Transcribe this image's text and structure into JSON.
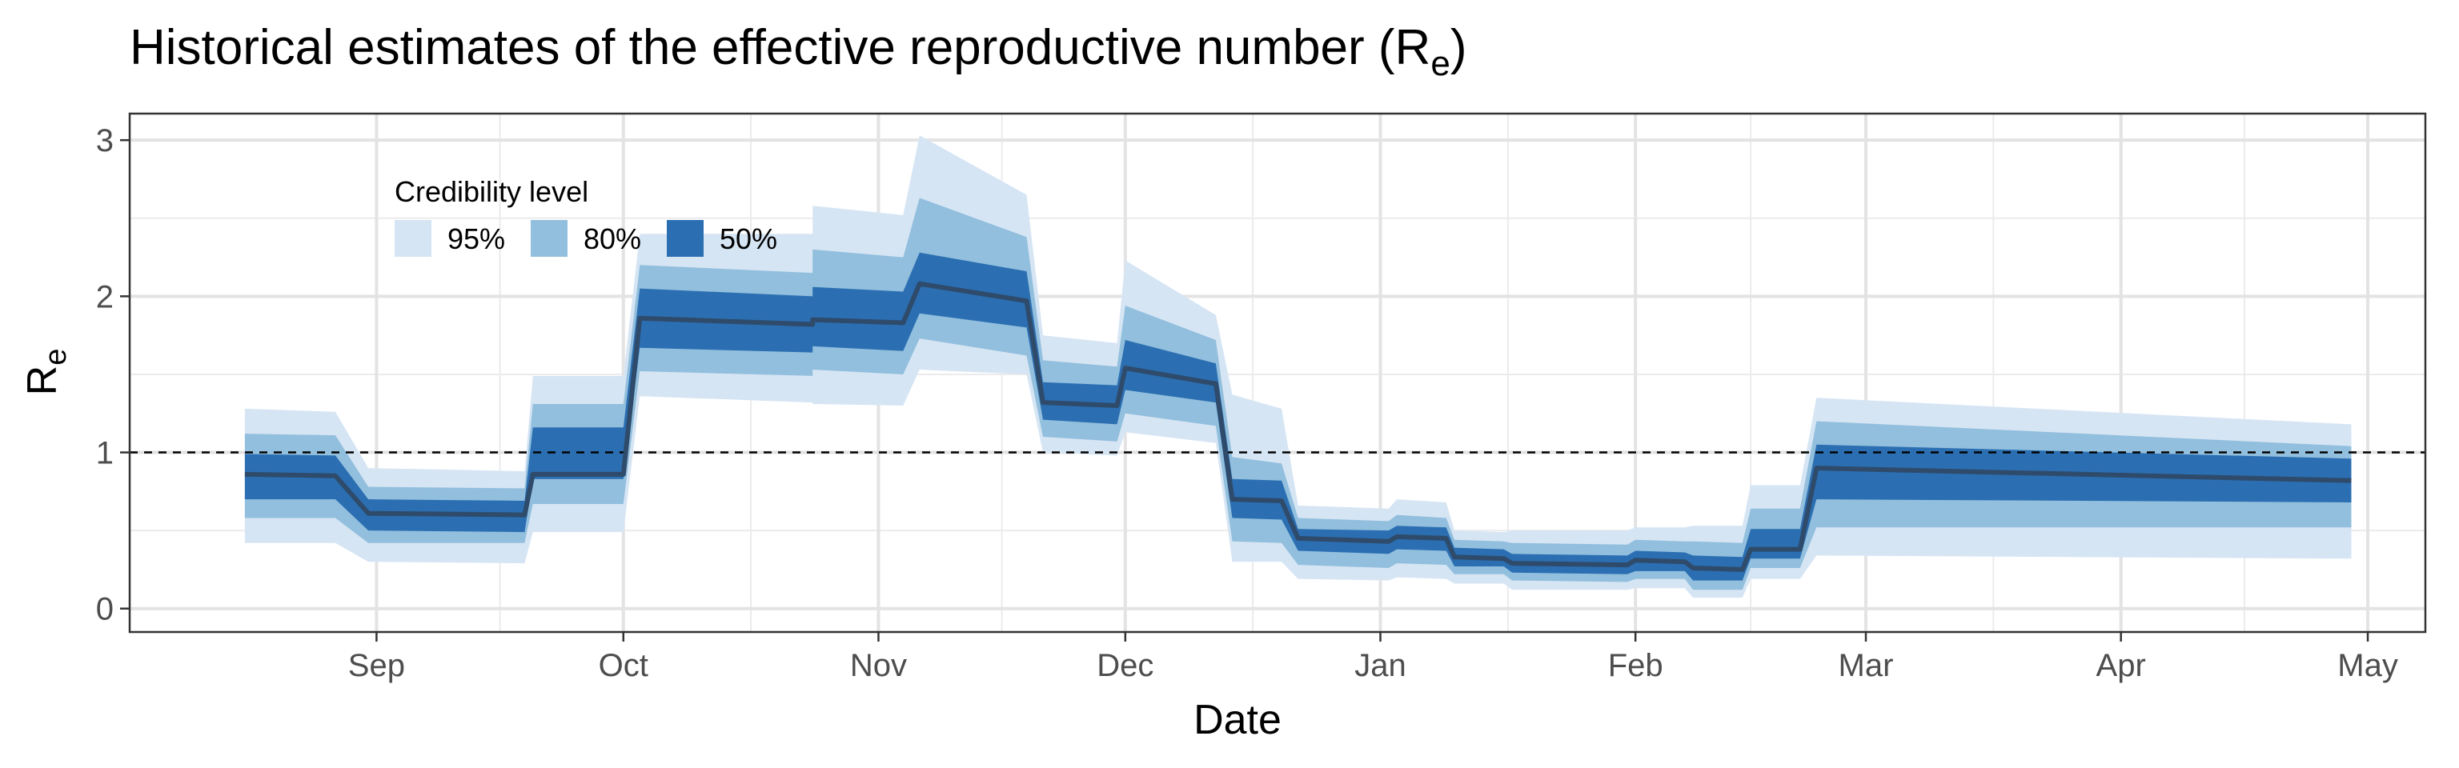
{
  "chart_data": {
    "type": "area",
    "title": "Historical estimates of the effective reproductive number (Re)",
    "title_parts": {
      "main": "Historical estimates of the effective reproductive number (R",
      "sub": "e",
      "close": ")"
    },
    "xlabel": "Date",
    "ylabel": "Re",
    "ylabel_parts": {
      "main": "R",
      "sub": "e"
    },
    "x_ticks": [
      {
        "date": "2020-09-01",
        "label": "Sep"
      },
      {
        "date": "2020-10-01",
        "label": "Oct"
      },
      {
        "date": "2020-11-01",
        "label": "Nov"
      },
      {
        "date": "2020-12-01",
        "label": "Dec"
      },
      {
        "date": "2021-01-01",
        "label": "Jan"
      },
      {
        "date": "2021-02-01",
        "label": "Feb"
      },
      {
        "date": "2021-03-01",
        "label": "Mar"
      },
      {
        "date": "2021-04-01",
        "label": "Apr"
      },
      {
        "date": "2021-05-01",
        "label": "May"
      }
    ],
    "xlim": [
      "2020-08-02",
      "2021-05-08"
    ],
    "ylim": [
      -0.15,
      3.17
    ],
    "y_ticks": [
      0,
      1,
      2,
      3
    ],
    "reference_line": {
      "y": 1,
      "style": "dashed"
    },
    "grid": true,
    "legend": {
      "title": "Credibility level",
      "placement": "top-left",
      "entries": [
        {
          "label": "95%",
          "color": "#d6e5f4"
        },
        {
          "label": "80%",
          "color": "#92bfdd"
        },
        {
          "label": "50%",
          "color": "#2b6fb2"
        }
      ]
    },
    "colors": {
      "ci95": "#d6e5f4",
      "ci80": "#92bfdd",
      "ci50": "#2b6fb2",
      "median": "#2f4b6b"
    },
    "series": [
      {
        "x": "2020-08-16",
        "median": 0.86,
        "lo95": 0.42,
        "hi95": 1.28,
        "lo80": 0.58,
        "hi80": 1.12,
        "lo50": 0.7,
        "hi50": 0.99
      },
      {
        "x": "2020-08-27",
        "median": 0.85,
        "lo95": 0.42,
        "hi95": 1.26,
        "lo80": 0.58,
        "hi80": 1.11,
        "lo50": 0.7,
        "hi50": 0.98
      },
      {
        "x": "2020-08-31",
        "median": 0.61,
        "lo95": 0.3,
        "hi95": 0.9,
        "lo80": 0.42,
        "hi80": 0.78,
        "lo50": 0.5,
        "hi50": 0.7
      },
      {
        "x": "2020-09-19",
        "median": 0.6,
        "lo95": 0.29,
        "hi95": 0.88,
        "lo80": 0.42,
        "hi80": 0.77,
        "lo50": 0.49,
        "hi50": 0.69
      },
      {
        "x": "2020-09-20",
        "median": 0.86,
        "lo95": 0.49,
        "hi95": 1.49,
        "lo80": 0.67,
        "hi80": 1.31,
        "lo50": 0.83,
        "hi50": 1.16
      },
      {
        "x": "2020-10-01",
        "median": 0.86,
        "lo95": 0.49,
        "hi95": 1.49,
        "lo80": 0.67,
        "hi80": 1.31,
        "lo50": 0.83,
        "hi50": 1.16
      },
      {
        "x": "2020-10-03",
        "median": 1.86,
        "lo95": 1.36,
        "hi95": 2.4,
        "lo80": 1.52,
        "hi80": 2.2,
        "lo50": 1.67,
        "hi50": 2.05
      },
      {
        "x": "2020-10-24",
        "median": 1.82,
        "lo95": 1.32,
        "hi95": 2.4,
        "lo80": 1.49,
        "hi80": 2.15,
        "lo50": 1.64,
        "hi50": 2.0
      },
      {
        "x": "2020-10-24",
        "median": 1.85,
        "lo95": 1.31,
        "hi95": 2.58,
        "lo80": 1.53,
        "hi80": 2.3,
        "lo50": 1.68,
        "hi50": 2.06
      },
      {
        "x": "2020-11-04",
        "median": 1.83,
        "lo95": 1.3,
        "hi95": 2.52,
        "lo80": 1.5,
        "hi80": 2.25,
        "lo50": 1.65,
        "hi50": 2.03
      },
      {
        "x": "2020-11-06",
        "median": 2.08,
        "lo95": 1.53,
        "hi95": 3.03,
        "lo80": 1.73,
        "hi80": 2.63,
        "lo50": 1.89,
        "hi50": 2.28
      },
      {
        "x": "2020-11-19",
        "median": 1.97,
        "lo95": 1.5,
        "hi95": 2.65,
        "lo80": 1.62,
        "hi80": 2.38,
        "lo50": 1.8,
        "hi50": 2.16
      },
      {
        "x": "2020-11-21",
        "median": 1.32,
        "lo95": 1.0,
        "hi95": 1.75,
        "lo80": 1.1,
        "hi80": 1.59,
        "lo50": 1.21,
        "hi50": 1.45
      },
      {
        "x": "2020-11-30",
        "median": 1.3,
        "lo95": 0.98,
        "hi95": 1.7,
        "lo80": 1.07,
        "hi80": 1.55,
        "lo50": 1.18,
        "hi50": 1.43
      },
      {
        "x": "2020-12-01",
        "median": 1.54,
        "lo95": 1.13,
        "hi95": 2.23,
        "lo80": 1.25,
        "hi80": 1.94,
        "lo50": 1.4,
        "hi50": 1.72
      },
      {
        "x": "2020-12-12",
        "median": 1.44,
        "lo95": 1.06,
        "hi95": 1.88,
        "lo80": 1.17,
        "hi80": 1.72,
        "lo50": 1.32,
        "hi50": 1.57
      },
      {
        "x": "2020-12-14",
        "median": 0.7,
        "lo95": 0.3,
        "hi95": 1.37,
        "lo80": 0.43,
        "hi80": 0.97,
        "lo50": 0.58,
        "hi50": 0.83
      },
      {
        "x": "2020-12-20",
        "median": 0.69,
        "lo95": 0.3,
        "hi95": 1.28,
        "lo80": 0.42,
        "hi80": 0.93,
        "lo50": 0.57,
        "hi50": 0.82
      },
      {
        "x": "2020-12-22",
        "median": 0.45,
        "lo95": 0.19,
        "hi95": 0.66,
        "lo80": 0.28,
        "hi80": 0.58,
        "lo50": 0.37,
        "hi50": 0.51
      },
      {
        "x": "2021-01-02",
        "median": 0.43,
        "lo95": 0.18,
        "hi95": 0.64,
        "lo80": 0.26,
        "hi80": 0.56,
        "lo50": 0.35,
        "hi50": 0.5
      },
      {
        "x": "2021-01-03",
        "median": 0.46,
        "lo95": 0.2,
        "hi95": 0.7,
        "lo80": 0.29,
        "hi80": 0.6,
        "lo50": 0.38,
        "hi50": 0.53
      },
      {
        "x": "2021-01-09",
        "median": 0.45,
        "lo95": 0.19,
        "hi95": 0.68,
        "lo80": 0.28,
        "hi80": 0.58,
        "lo50": 0.37,
        "hi50": 0.52
      },
      {
        "x": "2021-01-10",
        "median": 0.33,
        "lo95": 0.16,
        "hi95": 0.5,
        "lo80": 0.22,
        "hi80": 0.44,
        "lo50": 0.27,
        "hi50": 0.39
      },
      {
        "x": "2021-01-16",
        "median": 0.32,
        "lo95": 0.16,
        "hi95": 0.49,
        "lo80": 0.22,
        "hi80": 0.43,
        "lo50": 0.27,
        "hi50": 0.38
      },
      {
        "x": "2021-01-17",
        "median": 0.29,
        "lo95": 0.12,
        "hi95": 0.5,
        "lo80": 0.18,
        "hi80": 0.42,
        "lo50": 0.23,
        "hi50": 0.35
      },
      {
        "x": "2021-01-31",
        "median": 0.28,
        "lo95": 0.12,
        "hi95": 0.5,
        "lo80": 0.17,
        "hi80": 0.41,
        "lo50": 0.22,
        "hi50": 0.34
      },
      {
        "x": "2021-02-01",
        "median": 0.31,
        "lo95": 0.13,
        "hi95": 0.52,
        "lo80": 0.19,
        "hi80": 0.44,
        "lo50": 0.24,
        "hi50": 0.37
      },
      {
        "x": "2021-02-07",
        "median": 0.3,
        "lo95": 0.13,
        "hi95": 0.52,
        "lo80": 0.19,
        "hi80": 0.43,
        "lo50": 0.24,
        "hi50": 0.36
      },
      {
        "x": "2021-02-08",
        "median": 0.26,
        "lo95": 0.07,
        "hi95": 0.53,
        "lo80": 0.12,
        "hi80": 0.43,
        "lo50": 0.18,
        "hi50": 0.34
      },
      {
        "x": "2021-02-14",
        "median": 0.25,
        "lo95": 0.07,
        "hi95": 0.53,
        "lo80": 0.12,
        "hi80": 0.42,
        "lo50": 0.18,
        "hi50": 0.33
      },
      {
        "x": "2021-02-15",
        "median": 0.38,
        "lo95": 0.19,
        "hi95": 0.79,
        "lo80": 0.26,
        "hi80": 0.64,
        "lo50": 0.32,
        "hi50": 0.51
      },
      {
        "x": "2021-02-21",
        "median": 0.38,
        "lo95": 0.19,
        "hi95": 0.79,
        "lo80": 0.26,
        "hi80": 0.64,
        "lo50": 0.32,
        "hi50": 0.51
      },
      {
        "x": "2021-02-23",
        "median": 0.9,
        "lo95": 0.34,
        "hi95": 1.35,
        "lo80": 0.52,
        "hi80": 1.2,
        "lo50": 0.7,
        "hi50": 1.05
      },
      {
        "x": "2021-04-29",
        "median": 0.82,
        "lo95": 0.32,
        "hi95": 1.18,
        "lo80": 0.52,
        "hi80": 1.04,
        "lo50": 0.68,
        "hi50": 0.96
      }
    ]
  }
}
